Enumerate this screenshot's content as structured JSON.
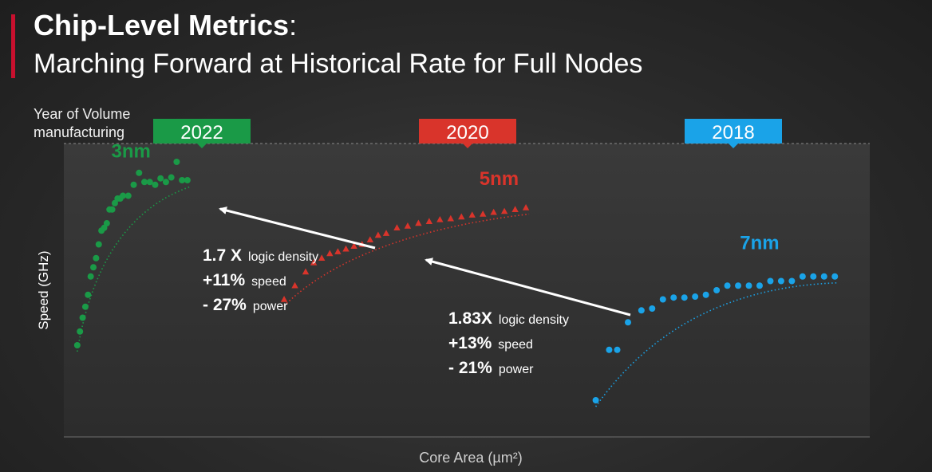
{
  "slide": {
    "title_main": "Chip-Level Metrics",
    "title_colon": ":",
    "subtitle": "Marching Forward at Historical Rate for Full Nodes",
    "year_label_line1": "Year of Volume",
    "year_label_line2": "manufacturing"
  },
  "colors": {
    "n3": "#1a9a47",
    "n5": "#d9342b",
    "n7": "#1aa3e8",
    "accent": "#c8102e"
  },
  "chart_data": {
    "type": "scatter",
    "xlabel": "Core Area (µm²)",
    "ylabel": "Speed (GHz)",
    "series": [
      {
        "name": "3nm",
        "year": "2022",
        "marker": "circle",
        "color": "#1a9a47",
        "x": [
          0.5,
          0.6,
          0.7,
          0.8,
          0.9,
          1.0,
          1.1,
          1.2,
          1.3,
          1.4,
          1.5,
          1.6,
          1.7,
          1.8,
          1.9,
          2.0,
          2.1,
          2.2,
          2.4,
          2.6,
          2.8,
          3.0,
          3.2,
          3.4,
          3.6,
          3.8,
          4.0,
          4.2,
          4.4,
          4.6
        ],
        "y": [
          1.0,
          1.15,
          1.3,
          1.42,
          1.55,
          1.75,
          1.85,
          1.95,
          2.1,
          2.25,
          2.28,
          2.33,
          2.48,
          2.48,
          2.55,
          2.6,
          2.6,
          2.63,
          2.63,
          2.75,
          2.88,
          2.78,
          2.78,
          2.75,
          2.82,
          2.78,
          2.83,
          3.0,
          2.8,
          2.8
        ]
      },
      {
        "name": "5nm",
        "year": "2020",
        "marker": "triangle",
        "color": "#d9342b",
        "x": [
          8.2,
          8.6,
          9.0,
          9.3,
          9.6,
          9.9,
          10.2,
          10.5,
          10.8,
          11.1,
          11.4,
          11.7,
          12.0,
          12.4,
          12.8,
          13.2,
          13.6,
          14.0,
          14.4,
          14.8,
          15.2,
          15.6,
          16.0,
          16.4,
          16.8,
          17.2
        ],
        "y": [
          1.5,
          1.65,
          1.8,
          1.9,
          1.95,
          2.0,
          2.02,
          2.05,
          2.08,
          2.1,
          2.15,
          2.2,
          2.22,
          2.28,
          2.3,
          2.33,
          2.35,
          2.37,
          2.38,
          2.4,
          2.42,
          2.43,
          2.45,
          2.46,
          2.48,
          2.5
        ]
      },
      {
        "name": "7nm",
        "year": "2018",
        "marker": "circle",
        "color": "#1aa3e8",
        "x": [
          19.8,
          20.3,
          20.6,
          21.0,
          21.5,
          21.9,
          22.3,
          22.7,
          23.1,
          23.5,
          23.9,
          24.3,
          24.7,
          25.1,
          25.5,
          25.9,
          26.3,
          26.7,
          27.1,
          27.5,
          27.9,
          28.3,
          28.7
        ],
        "y": [
          0.4,
          0.95,
          0.95,
          1.25,
          1.38,
          1.4,
          1.5,
          1.52,
          1.52,
          1.53,
          1.55,
          1.6,
          1.65,
          1.65,
          1.65,
          1.65,
          1.7,
          1.7,
          1.7,
          1.75,
          1.75,
          1.75,
          1.75
        ]
      }
    ],
    "banners": [
      {
        "year": "2022",
        "color": "#1a9a47"
      },
      {
        "year": "2020",
        "color": "#d9342b"
      },
      {
        "year": "2018",
        "color": "#1aa3e8"
      }
    ],
    "annotations": [
      {
        "from": "5nm",
        "to": "3nm",
        "lines": [
          {
            "value": "1.7 X",
            "label": "logic density"
          },
          {
            "value": "+11%",
            "label": "speed"
          },
          {
            "value": "- 27%",
            "label": "power"
          }
        ]
      },
      {
        "from": "7nm",
        "to": "5nm",
        "lines": [
          {
            "value": "1.83X",
            "label": "logic density"
          },
          {
            "value": "+13%",
            "label": "speed"
          },
          {
            "value": "- 21%",
            "label": "power"
          }
        ]
      }
    ],
    "xlim": [
      0,
      30
    ],
    "ylim": [
      0,
      3.2
    ],
    "grid": false
  }
}
